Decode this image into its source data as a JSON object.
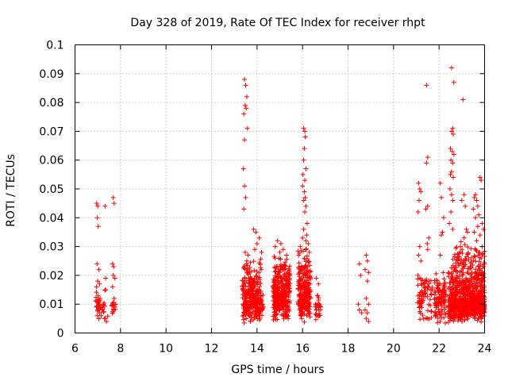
{
  "chart_data": {
    "type": "scatter",
    "title": "Day 328 of 2019, Rate Of TEC Index for receiver rhpt",
    "xlabel": "GPS time / hours",
    "ylabel": "ROTI / TECUs",
    "xlim": [
      6,
      24
    ],
    "ylim": [
      0,
      0.1
    ],
    "xticks": [
      "6",
      "8",
      "10",
      "12",
      "14",
      "16",
      "18",
      "20",
      "22",
      "24"
    ],
    "yticks": [
      "0",
      "0.01",
      "0.02",
      "0.03",
      "0.04",
      "0.05",
      "0.06",
      "0.07",
      "0.08",
      "0.09",
      "0.1"
    ],
    "grid": true,
    "marker": "plus",
    "series": [
      {
        "name": "ROTI",
        "color": "#ff0000",
        "points": [
          [
            6.95,
            0.045
          ],
          [
            7.0,
            0.044
          ],
          [
            6.98,
            0.04
          ],
          [
            7.02,
            0.037
          ],
          [
            6.97,
            0.024
          ],
          [
            7.05,
            0.022
          ],
          [
            7.0,
            0.018
          ],
          [
            7.08,
            0.017
          ],
          [
            6.95,
            0.016
          ],
          [
            7.02,
            0.013
          ],
          [
            7.1,
            0.012
          ],
          [
            6.98,
            0.011
          ],
          [
            7.05,
            0.01
          ],
          [
            6.95,
            0.009
          ],
          [
            7.12,
            0.009
          ],
          [
            7.0,
            0.008
          ],
          [
            7.08,
            0.007
          ],
          [
            6.97,
            0.006
          ],
          [
            7.15,
            0.006
          ],
          [
            7.05,
            0.005
          ],
          [
            7.2,
            0.008
          ],
          [
            7.25,
            0.01
          ],
          [
            7.3,
            0.005
          ],
          [
            7.35,
            0.019
          ],
          [
            7.32,
            0.044
          ],
          [
            7.38,
            0.004
          ],
          [
            7.68,
            0.047
          ],
          [
            7.72,
            0.045
          ],
          [
            7.65,
            0.024
          ],
          [
            7.7,
            0.023
          ],
          [
            7.68,
            0.02
          ],
          [
            7.75,
            0.019
          ],
          [
            7.65,
            0.016
          ],
          [
            7.72,
            0.012
          ],
          [
            7.68,
            0.01
          ],
          [
            7.75,
            0.009
          ],
          [
            7.7,
            0.008
          ],
          [
            7.65,
            0.007
          ],
          [
            13.45,
            0.088
          ],
          [
            13.5,
            0.086
          ],
          [
            13.55,
            0.082
          ],
          [
            13.48,
            0.079
          ],
          [
            13.52,
            0.078
          ],
          [
            13.42,
            0.076
          ],
          [
            13.58,
            0.071
          ],
          [
            13.45,
            0.067
          ],
          [
            13.4,
            0.057
          ],
          [
            13.45,
            0.051
          ],
          [
            13.5,
            0.047
          ],
          [
            13.42,
            0.043
          ],
          [
            13.48,
            0.028
          ],
          [
            13.6,
            0.027
          ],
          [
            13.55,
            0.025
          ],
          [
            16.05,
            0.071
          ],
          [
            16.1,
            0.07
          ],
          [
            16.12,
            0.068
          ],
          [
            16.08,
            0.064
          ],
          [
            16.05,
            0.06
          ],
          [
            16.15,
            0.057
          ],
          [
            16.02,
            0.055
          ],
          [
            16.1,
            0.053
          ],
          [
            16.0,
            0.051
          ],
          [
            16.08,
            0.049
          ],
          [
            16.12,
            0.047
          ],
          [
            16.05,
            0.046
          ],
          [
            16.15,
            0.044
          ],
          [
            16.1,
            0.042
          ],
          [
            16.2,
            0.038
          ],
          [
            16.05,
            0.036
          ],
          [
            16.18,
            0.034
          ],
          [
            13.85,
            0.036
          ],
          [
            13.95,
            0.035
          ],
          [
            14.1,
            0.033
          ],
          [
            14.0,
            0.031
          ],
          [
            13.9,
            0.029
          ],
          [
            14.2,
            0.028
          ],
          [
            14.9,
            0.032
          ],
          [
            15.05,
            0.031
          ],
          [
            14.8,
            0.03
          ],
          [
            15.15,
            0.029
          ],
          [
            15.0,
            0.028
          ],
          [
            15.3,
            0.027
          ],
          [
            16.0,
            0.033
          ],
          [
            16.15,
            0.032
          ],
          [
            15.9,
            0.03
          ],
          [
            16.25,
            0.031
          ],
          [
            16.3,
            0.028
          ],
          [
            16.6,
            0.019
          ],
          [
            16.7,
            0.017
          ],
          [
            16.65,
            0.013
          ],
          [
            16.75,
            0.01
          ],
          [
            16.6,
            0.008
          ],
          [
            16.7,
            0.006
          ],
          [
            18.5,
            0.024
          ],
          [
            18.55,
            0.02
          ],
          [
            18.45,
            0.01
          ],
          [
            18.5,
            0.008
          ],
          [
            18.6,
            0.007
          ],
          [
            18.8,
            0.027
          ],
          [
            18.85,
            0.025
          ],
          [
            18.75,
            0.022
          ],
          [
            18.9,
            0.021
          ],
          [
            18.85,
            0.018
          ],
          [
            18.8,
            0.012
          ],
          [
            18.9,
            0.01
          ],
          [
            18.75,
            0.008
          ],
          [
            18.85,
            0.007
          ],
          [
            18.8,
            0.005
          ],
          [
            18.9,
            0.004
          ],
          [
            21.1,
            0.052
          ],
          [
            21.15,
            0.05
          ],
          [
            21.2,
            0.049
          ],
          [
            21.12,
            0.046
          ],
          [
            21.08,
            0.042
          ],
          [
            21.15,
            0.03
          ],
          [
            21.1,
            0.027
          ],
          [
            21.2,
            0.025
          ],
          [
            21.45,
            0.086
          ],
          [
            21.5,
            0.061
          ],
          [
            21.45,
            0.059
          ],
          [
            21.5,
            0.044
          ],
          [
            21.42,
            0.043
          ],
          [
            21.55,
            0.033
          ],
          [
            21.48,
            0.031
          ],
          [
            21.5,
            0.029
          ],
          [
            22.05,
            0.052
          ],
          [
            22.1,
            0.047
          ],
          [
            22.15,
            0.035
          ],
          [
            22.1,
            0.034
          ],
          [
            22.2,
            0.04
          ],
          [
            22.05,
            0.027
          ],
          [
            22.55,
            0.092
          ],
          [
            22.65,
            0.087
          ],
          [
            22.6,
            0.071
          ],
          [
            22.55,
            0.07
          ],
          [
            22.62,
            0.069
          ],
          [
            22.5,
            0.064
          ],
          [
            22.58,
            0.063
          ],
          [
            22.65,
            0.062
          ],
          [
            22.52,
            0.06
          ],
          [
            22.6,
            0.059
          ],
          [
            22.55,
            0.056
          ],
          [
            22.5,
            0.055
          ],
          [
            22.62,
            0.054
          ],
          [
            22.48,
            0.05
          ],
          [
            22.55,
            0.048
          ],
          [
            22.6,
            0.046
          ],
          [
            22.52,
            0.042
          ],
          [
            22.45,
            0.038
          ],
          [
            22.6,
            0.036
          ],
          [
            23.05,
            0.081
          ],
          [
            23.1,
            0.048
          ],
          [
            23.0,
            0.046
          ],
          [
            23.15,
            0.044
          ],
          [
            23.2,
            0.036
          ],
          [
            23.25,
            0.035
          ],
          [
            23.1,
            0.033
          ],
          [
            23.55,
            0.047
          ],
          [
            23.6,
            0.048
          ],
          [
            23.65,
            0.046
          ],
          [
            23.7,
            0.044
          ],
          [
            23.5,
            0.043
          ],
          [
            23.75,
            0.041
          ],
          [
            23.8,
            0.054
          ],
          [
            23.85,
            0.053
          ],
          [
            23.6,
            0.04
          ],
          [
            23.9,
            0.038
          ],
          [
            23.7,
            0.037
          ],
          [
            23.95,
            0.036
          ],
          [
            23.55,
            0.035
          ],
          [
            23.8,
            0.034
          ],
          [
            23.65,
            0.032
          ],
          [
            23.9,
            0.03
          ],
          [
            23.75,
            0.028
          ],
          [
            23.85,
            0.026
          ],
          [
            24.0,
            0.024
          ],
          [
            23.95,
            0.02
          ]
        ],
        "clusters": [
          {
            "xmin": 6.9,
            "xmax": 7.45,
            "ymin": 0.004,
            "ymax": 0.017,
            "n": 28,
            "seed": 11
          },
          {
            "xmin": 7.6,
            "xmax": 7.8,
            "ymin": 0.005,
            "ymax": 0.014,
            "n": 10,
            "seed": 12
          },
          {
            "xmin": 13.35,
            "xmax": 14.2,
            "ymin": 0.003,
            "ymax": 0.026,
            "n": 220,
            "seed": 21
          },
          {
            "xmin": 13.4,
            "xmax": 14.3,
            "ymin": 0.004,
            "ymax": 0.014,
            "n": 100,
            "seed": 22
          },
          {
            "xmin": 14.7,
            "xmax": 15.45,
            "ymin": 0.003,
            "ymax": 0.028,
            "n": 240,
            "seed": 31
          },
          {
            "xmin": 14.75,
            "xmax": 15.4,
            "ymin": 0.004,
            "ymax": 0.016,
            "n": 120,
            "seed": 32
          },
          {
            "xmin": 15.8,
            "xmax": 16.35,
            "ymin": 0.003,
            "ymax": 0.03,
            "n": 200,
            "seed": 41
          },
          {
            "xmin": 15.85,
            "xmax": 16.3,
            "ymin": 0.005,
            "ymax": 0.016,
            "n": 80,
            "seed": 42
          },
          {
            "xmin": 16.55,
            "xmax": 16.8,
            "ymin": 0.004,
            "ymax": 0.014,
            "n": 25,
            "seed": 43
          },
          {
            "xmin": 21.05,
            "xmax": 21.7,
            "ymin": 0.003,
            "ymax": 0.022,
            "n": 80,
            "seed": 51
          },
          {
            "xmin": 21.8,
            "xmax": 22.3,
            "ymin": 0.003,
            "ymax": 0.022,
            "n": 110,
            "seed": 52
          },
          {
            "xmin": 22.4,
            "xmax": 24.0,
            "ymin": 0.003,
            "ymax": 0.024,
            "n": 480,
            "seed": 61
          },
          {
            "xmin": 22.4,
            "xmax": 24.0,
            "ymin": 0.004,
            "ymax": 0.013,
            "n": 300,
            "seed": 62
          },
          {
            "xmin": 22.6,
            "xmax": 24.0,
            "ymin": 0.02,
            "ymax": 0.032,
            "n": 70,
            "seed": 63
          }
        ]
      }
    ]
  }
}
